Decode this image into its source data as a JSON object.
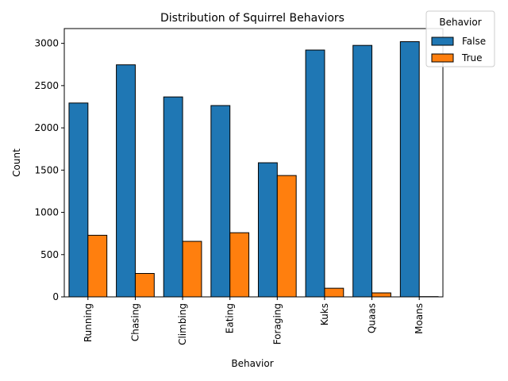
{
  "chart_data": {
    "type": "bar",
    "title": "Distribution of Squirrel Behaviors",
    "xlabel": "Behavior",
    "ylabel": "Count",
    "categories": [
      "Running",
      "Chasing",
      "Climbing",
      "Eating",
      "Foraging",
      "Kuks",
      "Quaas",
      "Moans"
    ],
    "series": [
      {
        "name": "False",
        "color": "#1f77b4",
        "values": [
          2294,
          2746,
          2366,
          2264,
          1587,
          2921,
          2976,
          3020
        ]
      },
      {
        "name": "True",
        "color": "#ff7f0e",
        "values": [
          729,
          277,
          657,
          759,
          1436,
          102,
          47,
          3
        ]
      }
    ],
    "ylim": [
      0,
      3175
    ],
    "yticks": [
      0,
      500,
      1000,
      1500,
      2000,
      2500,
      3000
    ],
    "grid": false,
    "legend": {
      "title": "Behavior",
      "position": "upper right"
    }
  }
}
